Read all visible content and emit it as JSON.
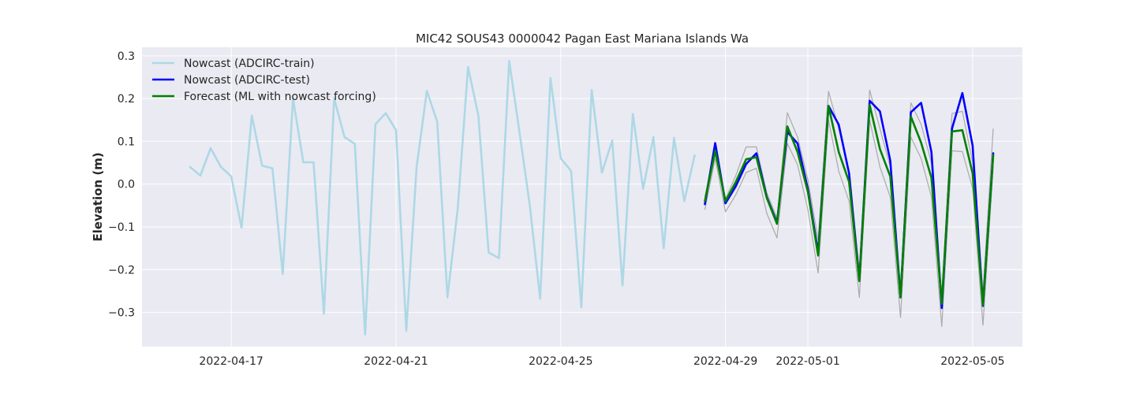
{
  "chart_data": {
    "type": "line",
    "title": "MIC42 SOUS43 0000042 Pagan East Mariana Islands Wa",
    "xlabel": "",
    "ylabel": "Elevation (m)",
    "x_axis": {
      "kind": "date",
      "range": [
        "2022-04-14T20:00",
        "2022-05-06T05:00"
      ],
      "ticks": [
        "2022-04-17",
        "2022-04-21",
        "2022-04-25",
        "2022-04-29",
        "2022-05-01",
        "2022-05-05"
      ]
    },
    "ylim": [
      -0.38,
      0.32
    ],
    "yticks": [
      -0.3,
      -0.2,
      -0.1,
      0.0,
      0.1,
      0.2,
      0.3
    ],
    "ytick_labels": [
      "−0.3",
      "−0.2",
      "−0.1",
      "0.0",
      "0.1",
      "0.2",
      "0.3"
    ],
    "grid": true,
    "background": "#eaeaf2",
    "legend": {
      "placement": "upper-left",
      "entries": [
        {
          "label": "Nowcast (ADCIRC-train)",
          "color": "#add8e6"
        },
        {
          "label": "Nowcast (ADCIRC-test)",
          "color": "#0000ff"
        },
        {
          "label": "Forecast (ML with nowcast forcing)",
          "color": "#008000"
        }
      ]
    },
    "series": [
      {
        "name": "Nowcast (ADCIRC-train)",
        "color": "#add8e6",
        "points": [
          [
            "2022-04-16T00:00",
            0.04
          ],
          [
            "2022-04-16T06:00",
            0.02
          ],
          [
            "2022-04-16T12:00",
            0.084
          ],
          [
            "2022-04-16T18:00",
            0.04
          ],
          [
            "2022-04-17T00:00",
            0.018
          ],
          [
            "2022-04-17T06:00",
            -0.102
          ],
          [
            "2022-04-17T12:00",
            0.16
          ],
          [
            "2022-04-17T18:00",
            0.043
          ],
          [
            "2022-04-18T00:00",
            0.037
          ],
          [
            "2022-04-18T06:00",
            -0.21
          ],
          [
            "2022-04-18T12:00",
            0.2
          ],
          [
            "2022-04-18T18:00",
            0.051
          ],
          [
            "2022-04-19T00:00",
            0.051
          ],
          [
            "2022-04-19T06:00",
            -0.303
          ],
          [
            "2022-04-19T12:00",
            0.2
          ],
          [
            "2022-04-19T18:00",
            0.11
          ],
          [
            "2022-04-20T00:00",
            0.094
          ],
          [
            "2022-04-20T06:00",
            -0.352
          ],
          [
            "2022-04-20T12:00",
            0.14
          ],
          [
            "2022-04-20T18:00",
            0.166
          ],
          [
            "2022-04-21T00:00",
            0.126
          ],
          [
            "2022-04-21T06:00",
            -0.343
          ],
          [
            "2022-04-21T12:00",
            0.04
          ],
          [
            "2022-04-21T18:00",
            0.218
          ],
          [
            "2022-04-22T00:00",
            0.146
          ],
          [
            "2022-04-22T06:00",
            -0.265
          ],
          [
            "2022-04-22T12:00",
            -0.056
          ],
          [
            "2022-04-22T18:00",
            0.274
          ],
          [
            "2022-04-23T00:00",
            0.16
          ],
          [
            "2022-04-23T06:00",
            -0.16
          ],
          [
            "2022-04-23T12:00",
            -0.173
          ],
          [
            "2022-04-23T18:00",
            0.288
          ],
          [
            "2022-04-24T00:00",
            0.12
          ],
          [
            "2022-04-24T06:00",
            -0.05
          ],
          [
            "2022-04-24T12:00",
            -0.268
          ],
          [
            "2022-04-24T18:00",
            0.248
          ],
          [
            "2022-04-25T00:00",
            0.06
          ],
          [
            "2022-04-25T06:00",
            0.031
          ],
          [
            "2022-04-25T12:00",
            -0.288
          ],
          [
            "2022-04-25T18:00",
            0.22
          ],
          [
            "2022-04-26T00:00",
            0.027
          ],
          [
            "2022-04-26T06:00",
            0.102
          ],
          [
            "2022-04-26T12:00",
            -0.237
          ],
          [
            "2022-04-26T18:00",
            0.164
          ],
          [
            "2022-04-27T00:00",
            -0.011
          ],
          [
            "2022-04-27T06:00",
            0.11
          ],
          [
            "2022-04-27T12:00",
            -0.15
          ],
          [
            "2022-04-27T18:00",
            0.108
          ],
          [
            "2022-04-28T00:00",
            -0.04
          ],
          [
            "2022-04-28T06:00",
            0.067
          ]
        ]
      },
      {
        "name": "Nowcast (ADCIRC-test)",
        "color": "#0000ff",
        "points": [
          [
            "2022-04-28T12:00",
            -0.047
          ],
          [
            "2022-04-28T18:00",
            0.096
          ],
          [
            "2022-04-29T00:00",
            -0.045
          ],
          [
            "2022-04-29T06:00",
            -0.005
          ],
          [
            "2022-04-29T12:00",
            0.047
          ],
          [
            "2022-04-29T18:00",
            0.072
          ],
          [
            "2022-04-30T00:00",
            -0.03
          ],
          [
            "2022-04-30T06:00",
            -0.09
          ],
          [
            "2022-04-30T12:00",
            0.122
          ],
          [
            "2022-04-30T18:00",
            0.095
          ],
          [
            "2022-05-01T00:00",
            -0.012
          ],
          [
            "2022-05-01T06:00",
            -0.16
          ],
          [
            "2022-05-01T12:00",
            0.183
          ],
          [
            "2022-05-01T18:00",
            0.139
          ],
          [
            "2022-05-02T00:00",
            0.025
          ],
          [
            "2022-05-02T06:00",
            -0.225
          ],
          [
            "2022-05-02T12:00",
            0.195
          ],
          [
            "2022-05-02T18:00",
            0.17
          ],
          [
            "2022-05-03T00:00",
            0.055
          ],
          [
            "2022-05-03T06:00",
            -0.265
          ],
          [
            "2022-05-03T12:00",
            0.168
          ],
          [
            "2022-05-03T18:00",
            0.19
          ],
          [
            "2022-05-04T00:00",
            0.075
          ],
          [
            "2022-05-04T06:00",
            -0.29
          ],
          [
            "2022-05-04T12:00",
            0.13
          ],
          [
            "2022-05-04T18:00",
            0.213
          ],
          [
            "2022-05-05T00:00",
            0.09
          ],
          [
            "2022-05-05T06:00",
            -0.285
          ],
          [
            "2022-05-05T12:00",
            0.072
          ]
        ]
      },
      {
        "name": "Forecast (ML with nowcast forcing)",
        "color": "#008000",
        "points": [
          [
            "2022-04-28T12:00",
            -0.04
          ],
          [
            "2022-04-28T18:00",
            0.078
          ],
          [
            "2022-04-29T00:00",
            -0.04
          ],
          [
            "2022-04-29T06:00",
            0.005
          ],
          [
            "2022-04-29T12:00",
            0.058
          ],
          [
            "2022-04-29T18:00",
            0.063
          ],
          [
            "2022-04-30T00:00",
            -0.032
          ],
          [
            "2022-04-30T06:00",
            -0.093
          ],
          [
            "2022-04-30T12:00",
            0.135
          ],
          [
            "2022-04-30T18:00",
            0.075
          ],
          [
            "2022-05-01T00:00",
            -0.018
          ],
          [
            "2022-05-01T06:00",
            -0.167
          ],
          [
            "2022-05-01T12:00",
            0.183
          ],
          [
            "2022-05-01T18:00",
            0.075
          ],
          [
            "2022-05-02T00:00",
            0.005
          ],
          [
            "2022-05-02T06:00",
            -0.227
          ],
          [
            "2022-05-02T12:00",
            0.185
          ],
          [
            "2022-05-02T18:00",
            0.082
          ],
          [
            "2022-05-03T00:00",
            0.018
          ],
          [
            "2022-05-03T06:00",
            -0.265
          ],
          [
            "2022-05-03T12:00",
            0.158
          ],
          [
            "2022-05-03T18:00",
            0.097
          ],
          [
            "2022-05-04T00:00",
            0.015
          ],
          [
            "2022-05-04T06:00",
            -0.28
          ],
          [
            "2022-05-04T12:00",
            0.123
          ],
          [
            "2022-05-04T18:00",
            0.126
          ],
          [
            "2022-05-05T00:00",
            0.025
          ],
          [
            "2022-05-05T06:00",
            -0.283
          ],
          [
            "2022-05-05T12:00",
            0.068
          ]
        ]
      }
    ],
    "envelope": {
      "color": "#aaaaaa",
      "upper": [
        [
          "2022-04-28T12:00",
          -0.03
        ],
        [
          "2022-04-28T18:00",
          0.09
        ],
        [
          "2022-04-29T00:00",
          -0.035
        ],
        [
          "2022-04-29T06:00",
          0.02
        ],
        [
          "2022-04-29T12:00",
          0.087
        ],
        [
          "2022-04-29T18:00",
          0.087
        ],
        [
          "2022-04-30T00:00",
          -0.02
        ],
        [
          "2022-04-30T06:00",
          -0.08
        ],
        [
          "2022-04-30T12:00",
          0.167
        ],
        [
          "2022-04-30T18:00",
          0.11
        ],
        [
          "2022-05-01T00:00",
          0.01
        ],
        [
          "2022-05-01T06:00",
          -0.13
        ],
        [
          "2022-05-01T12:00",
          0.217
        ],
        [
          "2022-05-01T18:00",
          0.13
        ],
        [
          "2022-05-02T00:00",
          0.03
        ],
        [
          "2022-05-02T06:00",
          -0.2
        ],
        [
          "2022-05-02T12:00",
          0.22
        ],
        [
          "2022-05-02T18:00",
          0.13
        ],
        [
          "2022-05-03T00:00",
          0.04
        ],
        [
          "2022-05-03T06:00",
          -0.24
        ],
        [
          "2022-05-03T12:00",
          0.19
        ],
        [
          "2022-05-03T18:00",
          0.14
        ],
        [
          "2022-05-04T00:00",
          0.05
        ],
        [
          "2022-05-04T06:00",
          -0.26
        ],
        [
          "2022-05-04T12:00",
          0.165
        ],
        [
          "2022-05-04T18:00",
          0.17
        ],
        [
          "2022-05-05T00:00",
          0.05
        ],
        [
          "2022-05-05T06:00",
          -0.255
        ],
        [
          "2022-05-05T12:00",
          0.13
        ]
      ],
      "lower": [
        [
          "2022-04-28T12:00",
          -0.06
        ],
        [
          "2022-04-28T18:00",
          0.06
        ],
        [
          "2022-04-29T00:00",
          -0.065
        ],
        [
          "2022-04-29T06:00",
          -0.025
        ],
        [
          "2022-04-29T12:00",
          0.027
        ],
        [
          "2022-04-29T18:00",
          0.037
        ],
        [
          "2022-04-30T00:00",
          -0.068
        ],
        [
          "2022-04-30T06:00",
          -0.126
        ],
        [
          "2022-04-30T12:00",
          0.095
        ],
        [
          "2022-04-30T18:00",
          0.045
        ],
        [
          "2022-05-01T00:00",
          -0.06
        ],
        [
          "2022-05-01T06:00",
          -0.208
        ],
        [
          "2022-05-01T12:00",
          0.15
        ],
        [
          "2022-05-01T18:00",
          0.03
        ],
        [
          "2022-05-02T00:00",
          -0.04
        ],
        [
          "2022-05-02T06:00",
          -0.265
        ],
        [
          "2022-05-02T12:00",
          0.15
        ],
        [
          "2022-05-02T18:00",
          0.04
        ],
        [
          "2022-05-03T00:00",
          -0.03
        ],
        [
          "2022-05-03T06:00",
          -0.312
        ],
        [
          "2022-05-03T12:00",
          0.11
        ],
        [
          "2022-05-03T18:00",
          0.06
        ],
        [
          "2022-05-04T00:00",
          -0.03
        ],
        [
          "2022-05-04T06:00",
          -0.333
        ],
        [
          "2022-05-04T12:00",
          0.078
        ],
        [
          "2022-05-04T18:00",
          0.076
        ],
        [
          "2022-05-05T00:00",
          -0.01
        ],
        [
          "2022-05-05T06:00",
          -0.33
        ],
        [
          "2022-05-05T12:00",
          0.04
        ]
      ]
    }
  }
}
